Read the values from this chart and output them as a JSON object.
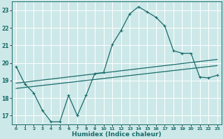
{
  "xlabel": "Humidex (Indice chaleur)",
  "background_color": "#cde8e8",
  "line_color": "#1a6b6b",
  "grid_color": "#ffffff",
  "xlim": [
    -0.5,
    23.5
  ],
  "ylim": [
    16.5,
    23.5
  ],
  "yticks": [
    17,
    18,
    19,
    20,
    21,
    22,
    23
  ],
  "xticks": [
    0,
    1,
    2,
    3,
    4,
    5,
    6,
    7,
    8,
    9,
    10,
    11,
    12,
    13,
    14,
    15,
    16,
    17,
    18,
    19,
    20,
    21,
    22,
    23
  ],
  "line1_x": [
    0,
    1,
    2,
    3,
    4,
    5,
    6,
    7,
    8,
    9,
    10,
    11,
    12,
    13,
    14,
    15,
    16,
    17,
    18,
    19,
    20,
    21,
    22,
    23
  ],
  "line1_y": [
    19.8,
    18.8,
    18.3,
    17.3,
    16.65,
    16.65,
    18.15,
    17.0,
    18.15,
    19.4,
    19.45,
    21.05,
    21.85,
    22.8,
    23.2,
    22.9,
    22.6,
    22.1,
    20.7,
    20.55,
    20.55,
    19.2,
    19.15,
    19.3
  ],
  "line2_x": [
    0,
    23
  ],
  "line2_y": [
    18.85,
    20.2
  ],
  "line3_x": [
    0,
    23
  ],
  "line3_y": [
    18.55,
    19.85
  ],
  "xtick_fontsize": 4.5,
  "ytick_fontsize": 5.5,
  "xlabel_fontsize": 6.5
}
